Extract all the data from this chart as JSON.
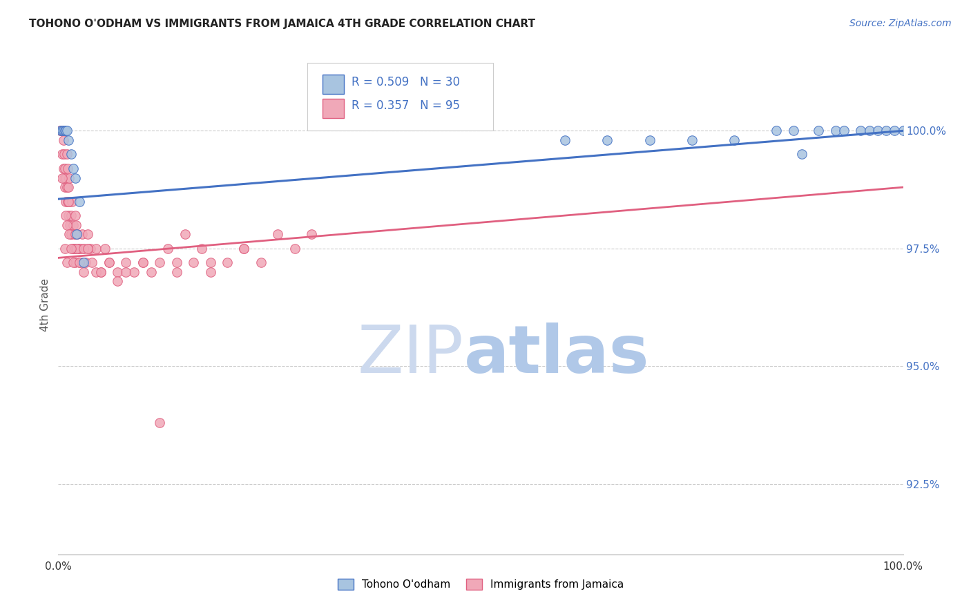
{
  "title": "TOHONO O'ODHAM VS IMMIGRANTS FROM JAMAICA 4TH GRADE CORRELATION CHART",
  "source": "Source: ZipAtlas.com",
  "ylabel": "4th Grade",
  "yticks": [
    92.5,
    95.0,
    97.5,
    100.0
  ],
  "xrange": [
    0.0,
    100.0
  ],
  "yrange": [
    91.0,
    101.5
  ],
  "legend_blue_label": "Tohono O'odham",
  "legend_pink_label": "Immigrants from Jamaica",
  "blue_R": 0.509,
  "blue_N": 30,
  "pink_R": 0.357,
  "pink_N": 95,
  "blue_color": "#a8c4e0",
  "pink_color": "#f0a8b8",
  "blue_line_color": "#4472c4",
  "pink_line_color": "#e06080",
  "blue_line_start_y": 98.55,
  "blue_line_end_y": 100.0,
  "pink_line_start_y": 97.3,
  "pink_line_end_y": 98.8,
  "blue_points_x": [
    0.3,
    0.5,
    0.6,
    0.8,
    0.9,
    1.0,
    1.2,
    1.5,
    1.8,
    2.0,
    2.2,
    2.5,
    3.0,
    60.0,
    65.0,
    70.0,
    75.0,
    80.0,
    85.0,
    87.0,
    88.0,
    90.0,
    92.0,
    93.0,
    95.0,
    96.0,
    97.0,
    98.0,
    99.0,
    100.0
  ],
  "blue_points_y": [
    100.0,
    100.0,
    100.0,
    100.0,
    100.0,
    100.0,
    99.8,
    99.5,
    99.2,
    99.0,
    97.8,
    98.5,
    97.2,
    99.8,
    99.8,
    99.8,
    99.8,
    99.8,
    100.0,
    100.0,
    99.5,
    100.0,
    100.0,
    100.0,
    100.0,
    100.0,
    100.0,
    100.0,
    100.0,
    100.0
  ],
  "pink_points_x": [
    0.2,
    0.3,
    0.4,
    0.5,
    0.5,
    0.6,
    0.6,
    0.7,
    0.7,
    0.8,
    0.8,
    0.9,
    0.9,
    1.0,
    1.0,
    1.1,
    1.1,
    1.2,
    1.2,
    1.3,
    1.3,
    1.4,
    1.5,
    1.5,
    1.6,
    1.7,
    1.8,
    1.8,
    1.9,
    2.0,
    2.0,
    2.1,
    2.2,
    2.3,
    2.4,
    2.5,
    2.6,
    2.8,
    3.0,
    3.2,
    3.5,
    3.8,
    4.0,
    4.5,
    5.0,
    5.5,
    6.0,
    7.0,
    8.0,
    9.0,
    10.0,
    11.0,
    12.0,
    13.0,
    14.0,
    15.0,
    16.0,
    17.0,
    18.0,
    20.0,
    22.0,
    24.0,
    26.0,
    28.0,
    30.0,
    1.0,
    1.2,
    1.5,
    2.0,
    2.5,
    3.0,
    0.8,
    1.0,
    1.3,
    1.8,
    2.2,
    2.8,
    3.5,
    4.5,
    6.0,
    8.0,
    10.0,
    14.0,
    18.0,
    22.0,
    2.0,
    3.0,
    0.5,
    0.9,
    1.5,
    2.5,
    3.5,
    5.0,
    7.0,
    12.0
  ],
  "pink_points_y": [
    100.0,
    100.0,
    100.0,
    100.0,
    99.5,
    99.8,
    99.2,
    99.0,
    99.5,
    98.8,
    99.2,
    98.5,
    99.0,
    98.8,
    99.5,
    98.5,
    99.2,
    98.2,
    98.8,
    98.5,
    99.0,
    98.0,
    98.2,
    97.8,
    98.5,
    97.5,
    98.0,
    97.5,
    97.8,
    98.2,
    97.5,
    98.0,
    97.5,
    97.8,
    97.5,
    97.2,
    97.5,
    97.8,
    97.5,
    97.2,
    97.8,
    97.5,
    97.2,
    97.5,
    97.0,
    97.5,
    97.2,
    97.0,
    97.2,
    97.0,
    97.2,
    97.0,
    97.2,
    97.5,
    97.2,
    97.8,
    97.2,
    97.5,
    97.0,
    97.2,
    97.5,
    97.2,
    97.8,
    97.5,
    97.8,
    98.0,
    98.5,
    97.8,
    97.2,
    97.5,
    97.0,
    97.5,
    97.2,
    97.8,
    97.2,
    97.5,
    97.2,
    97.5,
    97.0,
    97.2,
    97.0,
    97.2,
    97.0,
    97.2,
    97.5,
    97.8,
    97.5,
    99.0,
    98.2,
    97.5,
    97.2,
    97.5,
    97.0,
    96.8,
    93.8
  ]
}
